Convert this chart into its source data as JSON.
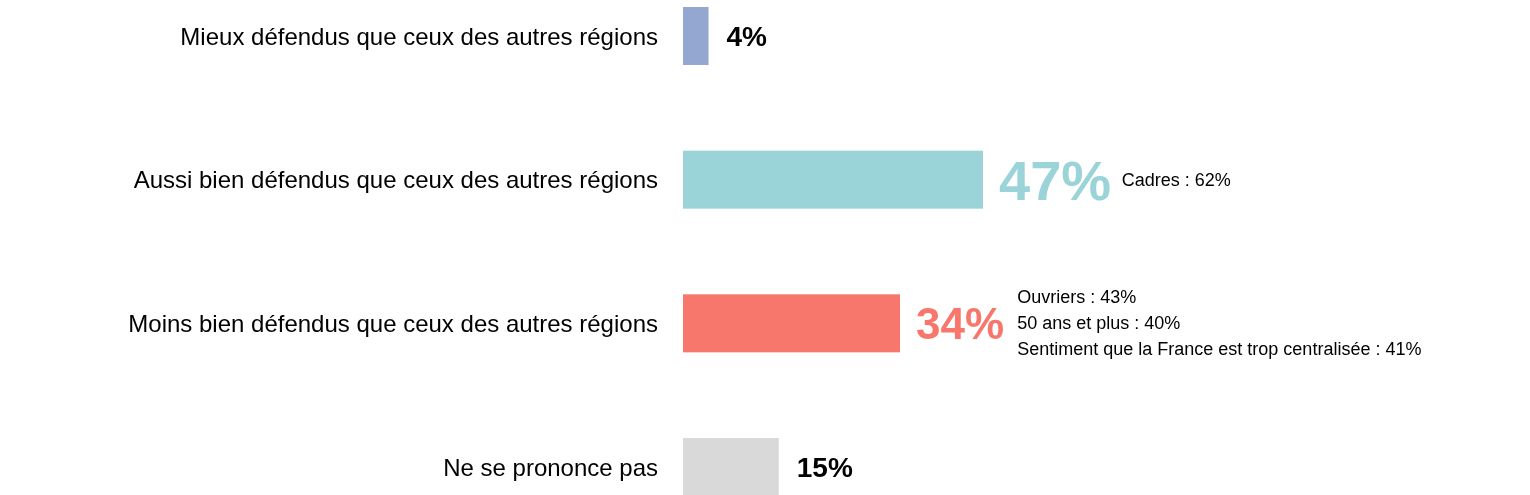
{
  "chart_data": {
    "type": "bar",
    "orientation": "horizontal",
    "categories": [
      "Mieux défendus que ceux des autres régions",
      "Aussi bien défendus que ceux des autres régions",
      "Moins bien défendus que ceux des autres régions",
      "Ne se prononce pas"
    ],
    "values": [
      4,
      47,
      34,
      15
    ],
    "colors": [
      "#94a7d0",
      "#9bd4d8",
      "#f8776d",
      "#d9d9d9"
    ],
    "data_labels": true,
    "value_labels": [
      "4%",
      "47%",
      "34%",
      "15%"
    ],
    "annotations": [
      "Cadres : 62%",
      "Ouvriers : 43%",
      "50 ans et plus : 40%",
      "Sentiment que la France est trop centralisée : 41%"
    ]
  }
}
